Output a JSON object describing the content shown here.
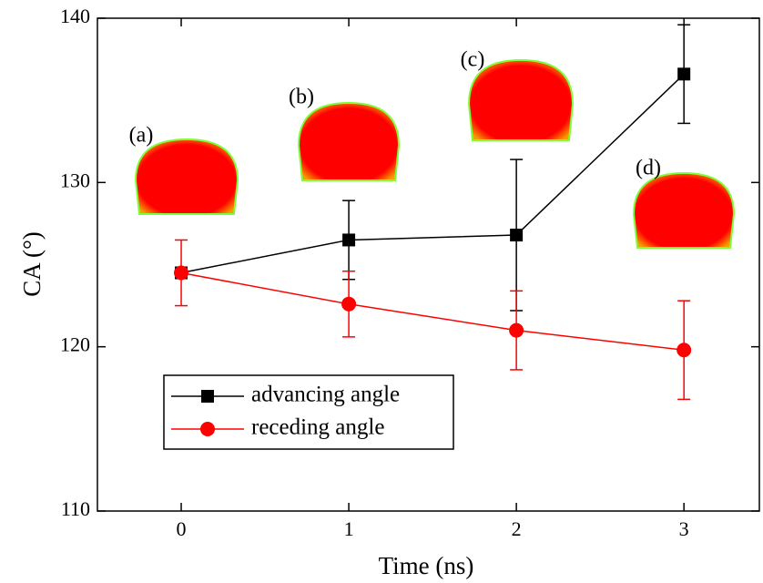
{
  "chart_data": {
    "type": "line",
    "x_label": "Time (ns)",
    "y_label": "CA (°)",
    "x": [
      0,
      1,
      2,
      3
    ],
    "series": [
      {
        "name": "advancing angle",
        "color": "#000000",
        "marker": "square",
        "values": [
          124.5,
          126.5,
          126.8,
          136.6
        ],
        "errors": [
          0,
          2.4,
          4.6,
          3.0
        ]
      },
      {
        "name": "receding angle",
        "color": "#ff0000",
        "marker": "circle",
        "values": [
          124.5,
          122.6,
          121.0,
          119.8
        ],
        "errors": [
          2.0,
          2.0,
          2.4,
          3.0
        ]
      }
    ],
    "annotations": [
      "(a)",
      "(b)",
      "(c)",
      "(d)"
    ],
    "xlim": [
      -0.5,
      3.45
    ],
    "ylim": [
      110,
      140
    ],
    "xticks": [
      0,
      1,
      2,
      3
    ],
    "yticks": [
      110,
      120,
      130,
      140
    ],
    "grid": false
  }
}
